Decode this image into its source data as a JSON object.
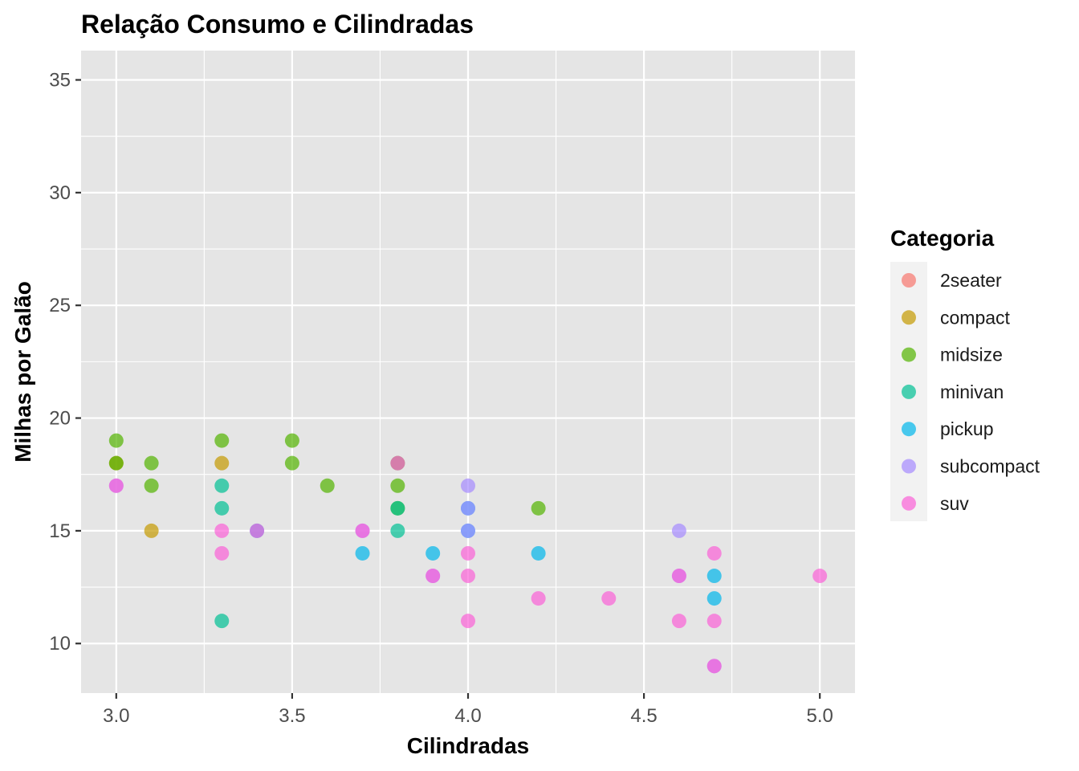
{
  "chart_data": {
    "type": "scatter",
    "title": "Relação Consumo e Cilindradas",
    "xlabel": "Cilindradas",
    "ylabel": "Milhas por Galão",
    "xlim": [
      2.9,
      5.1
    ],
    "ylim": [
      7.8,
      36.3
    ],
    "x_ticks": [
      3.0,
      3.5,
      4.0,
      4.5,
      5.0
    ],
    "x_tick_labels": [
      "3.0",
      "3.5",
      "4.0",
      "4.5",
      "5.0"
    ],
    "y_ticks": [
      10,
      15,
      20,
      25,
      30,
      35
    ],
    "y_tick_labels": [
      "10",
      "15",
      "20",
      "25",
      "30",
      "35"
    ],
    "grid": true,
    "panel_background": "#e5e5e5",
    "legend": {
      "title": "Categoria",
      "position": "right",
      "entries": [
        "2seater",
        "compact",
        "midsize",
        "minivan",
        "pickup",
        "subcompact",
        "suv"
      ]
    },
    "colors": {
      "2seater": "#F8766D",
      "compact": "#C49A00",
      "midsize": "#53B400",
      "minivan": "#00C094",
      "pickup": "#00B6EB",
      "subcompact": "#A58AFF",
      "suv": "#FB61D7"
    },
    "series": [
      {
        "name": "compact",
        "points": [
          [
            3.0,
            18
          ],
          [
            3.1,
            15
          ],
          [
            3.3,
            18
          ]
        ]
      },
      {
        "name": "midsize",
        "points": [
          [
            3.0,
            19
          ],
          [
            3.0,
            18
          ],
          [
            3.1,
            18
          ],
          [
            3.1,
            17
          ],
          [
            3.3,
            19
          ],
          [
            3.5,
            19
          ],
          [
            3.5,
            18
          ],
          [
            3.6,
            17
          ],
          [
            3.8,
            18
          ],
          [
            3.8,
            17
          ],
          [
            3.8,
            16
          ],
          [
            4.2,
            16
          ]
        ]
      },
      {
        "name": "minivan",
        "points": [
          [
            3.3,
            17
          ],
          [
            3.3,
            16
          ],
          [
            3.3,
            11
          ],
          [
            3.8,
            16
          ],
          [
            3.8,
            15
          ]
        ]
      },
      {
        "name": "pickup",
        "points": [
          [
            3.4,
            15
          ],
          [
            3.7,
            14
          ],
          [
            3.9,
            14
          ],
          [
            4.0,
            16
          ],
          [
            4.0,
            15
          ],
          [
            4.2,
            14
          ],
          [
            4.7,
            13
          ],
          [
            4.7,
            12
          ]
        ]
      },
      {
        "name": "subcompact",
        "points": [
          [
            3.0,
            17
          ],
          [
            3.7,
            15
          ],
          [
            3.9,
            13
          ],
          [
            4.0,
            17
          ],
          [
            4.0,
            16
          ],
          [
            4.0,
            15
          ],
          [
            4.6,
            15
          ],
          [
            4.6,
            13
          ],
          [
            4.7,
            9
          ]
        ]
      },
      {
        "name": "suv",
        "points": [
          [
            3.0,
            17
          ],
          [
            3.3,
            15
          ],
          [
            3.3,
            14
          ],
          [
            3.4,
            15
          ],
          [
            3.7,
            15
          ],
          [
            3.8,
            18
          ],
          [
            3.9,
            13
          ],
          [
            4.0,
            14
          ],
          [
            4.0,
            13
          ],
          [
            4.0,
            11
          ],
          [
            4.2,
            12
          ],
          [
            4.4,
            12
          ],
          [
            4.6,
            13
          ],
          [
            4.6,
            11
          ],
          [
            4.7,
            14
          ],
          [
            4.7,
            11
          ],
          [
            4.7,
            9
          ],
          [
            5.0,
            13
          ]
        ]
      }
    ]
  }
}
